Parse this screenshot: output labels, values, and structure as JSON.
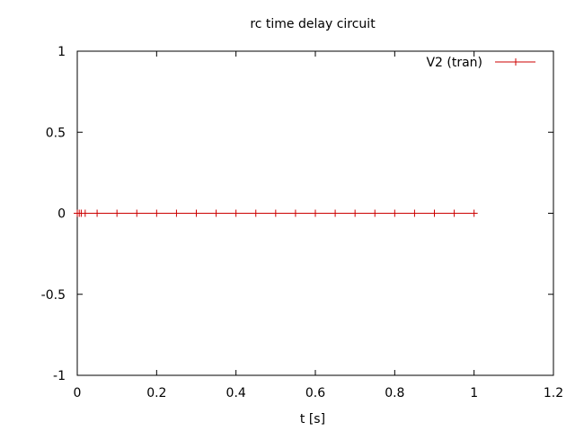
{
  "chart_data": {
    "type": "line",
    "title": "rc time delay circuit",
    "xlabel": "t [s]",
    "ylabel": "",
    "xlim": [
      0,
      1.2
    ],
    "ylim": [
      -1,
      1
    ],
    "xticks": [
      0,
      0.2,
      0.4,
      0.6,
      0.8,
      1,
      1.2
    ],
    "xtick_labels": [
      "0",
      "0.2",
      "0.4",
      "0.6",
      "0.8",
      "1",
      "1.2"
    ],
    "yticks": [
      -1,
      -0.5,
      0,
      0.5,
      1
    ],
    "ytick_labels": [
      "-1",
      "-0.5",
      "0",
      "0.5",
      "1"
    ],
    "grid": false,
    "legend_position": "top-right",
    "series": [
      {
        "name": "V2 (tran)",
        "color": "#cc0000",
        "marker": "plus",
        "x": [
          0,
          0.005,
          0.01,
          0.02,
          0.05,
          0.1,
          0.15,
          0.2,
          0.25,
          0.3,
          0.35,
          0.4,
          0.45,
          0.5,
          0.55,
          0.6,
          0.65,
          0.7,
          0.75,
          0.8,
          0.85,
          0.9,
          0.95,
          1.0
        ],
        "y": [
          0,
          0,
          0,
          0,
          0,
          0,
          0,
          0,
          0,
          0,
          0,
          0,
          0,
          0,
          0,
          0,
          0,
          0,
          0,
          0,
          0,
          0,
          0,
          0
        ]
      }
    ]
  }
}
